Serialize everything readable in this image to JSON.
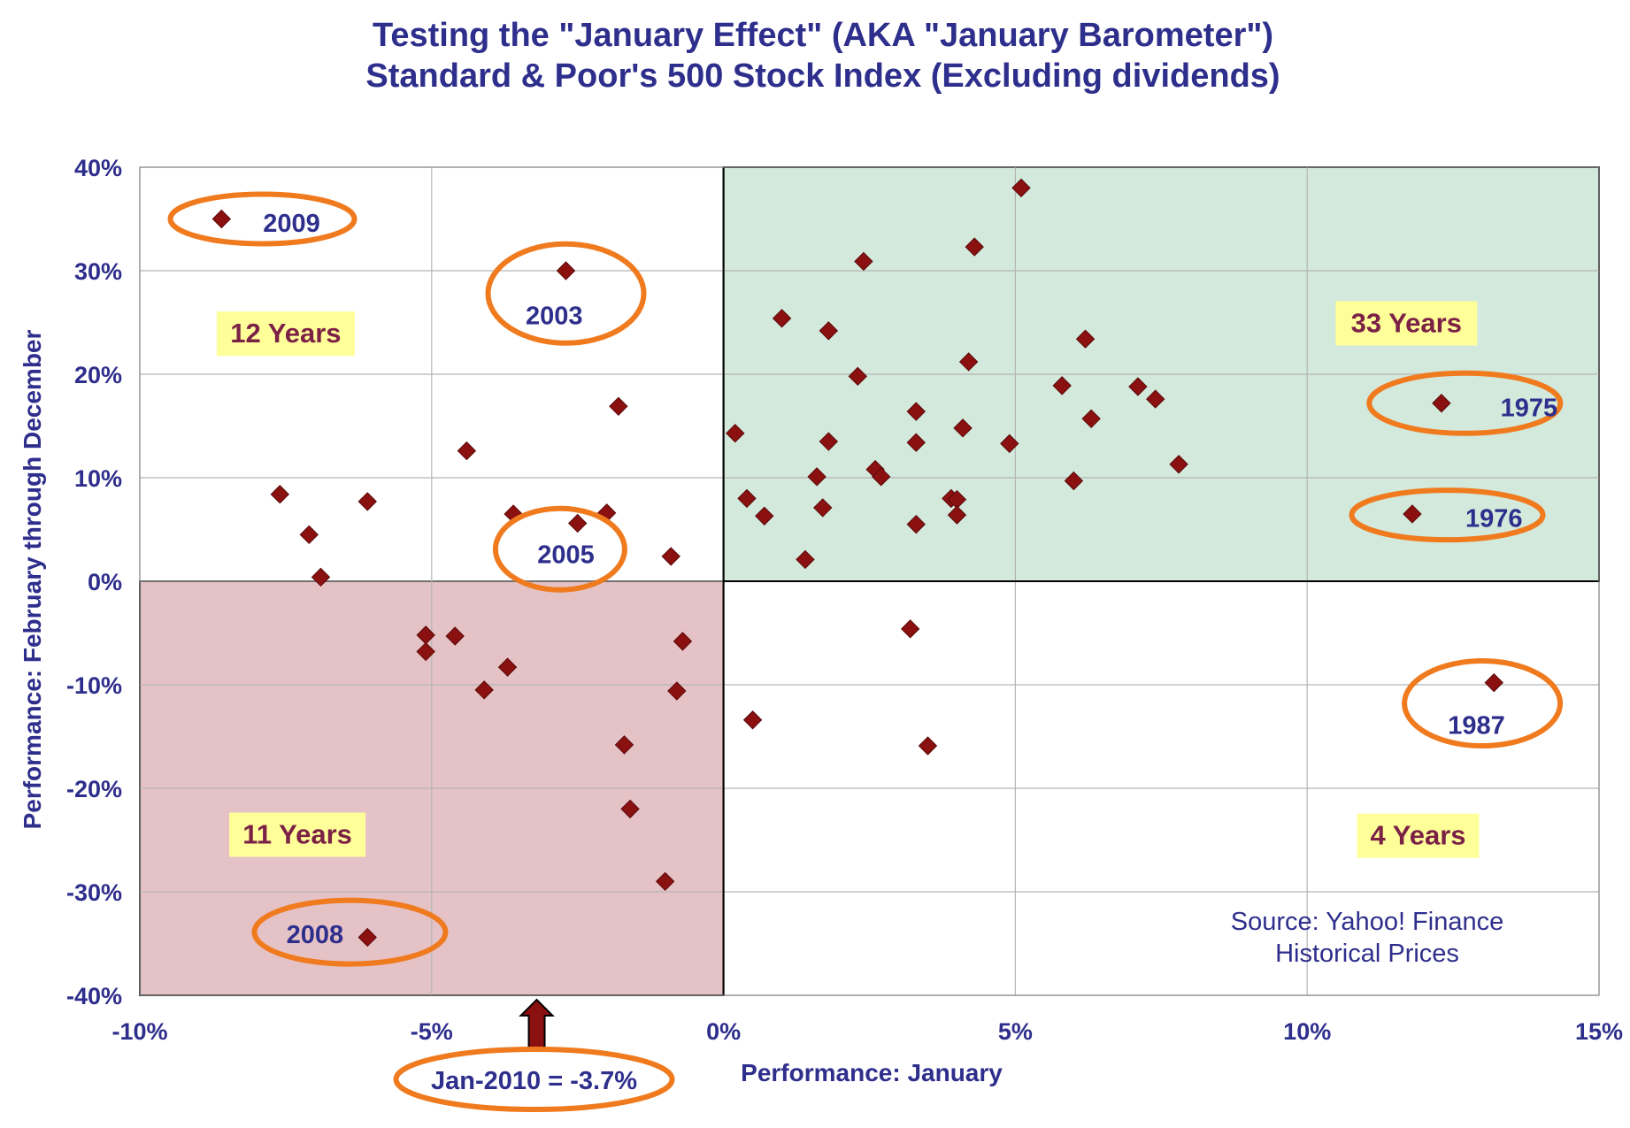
{
  "chart_data": {
    "type": "scatter",
    "title_lines": [
      "Testing the \"January Effect\" (AKA \"January Barometer\")",
      "Standard & Poor's 500 Stock Index (Excluding dividends)"
    ],
    "xlabel": "Performance: January",
    "ylabel": "Performance: February through December",
    "xlim": [
      -10,
      15
    ],
    "ylim": [
      -40,
      40
    ],
    "x_ticks": [
      -10,
      -5,
      0,
      5,
      10,
      15
    ],
    "x_tick_labels": [
      "-10%",
      "-5%",
      "0%",
      "5%",
      "10%",
      "15%"
    ],
    "y_ticks": [
      -40,
      -30,
      -20,
      -10,
      0,
      10,
      20,
      30,
      40
    ],
    "y_tick_labels": [
      "-40%",
      "-30%",
      "-20%",
      "-10%",
      "0%",
      "10%",
      "20%",
      "30%",
      "40%"
    ],
    "grid": true,
    "point_color": "#8b1010",
    "points": [
      {
        "x": -8.6,
        "y": 35.0,
        "label": "2009"
      },
      {
        "x": -2.7,
        "y": 30.0,
        "label": "2003"
      },
      {
        "x": -2.5,
        "y": 5.6,
        "label": "2005"
      },
      {
        "x": -6.1,
        "y": -34.4,
        "label": "2008"
      },
      {
        "x": 12.3,
        "y": 17.2,
        "label": "1975"
      },
      {
        "x": 11.8,
        "y": 6.5,
        "label": "1976"
      },
      {
        "x": 13.2,
        "y": -9.8,
        "label": "1987"
      },
      {
        "x": -7.6,
        "y": 8.4
      },
      {
        "x": -7.1,
        "y": 4.5
      },
      {
        "x": -6.9,
        "y": 0.4
      },
      {
        "x": -6.1,
        "y": 7.7
      },
      {
        "x": -4.4,
        "y": 12.6
      },
      {
        "x": -3.6,
        "y": 6.5
      },
      {
        "x": -2.0,
        "y": 6.6
      },
      {
        "x": -1.8,
        "y": 16.9
      },
      {
        "x": -0.9,
        "y": 2.4
      },
      {
        "x": -5.1,
        "y": -5.2
      },
      {
        "x": -5.1,
        "y": -6.8
      },
      {
        "x": -4.6,
        "y": -5.3
      },
      {
        "x": -4.1,
        "y": -10.5
      },
      {
        "x": -3.7,
        "y": -8.3
      },
      {
        "x": -0.7,
        "y": -5.8
      },
      {
        "x": -0.8,
        "y": -10.6
      },
      {
        "x": -1.7,
        "y": -15.8
      },
      {
        "x": -1.6,
        "y": -22.0
      },
      {
        "x": -1.0,
        "y": -29.0
      },
      {
        "x": 5.1,
        "y": 38.0
      },
      {
        "x": 4.3,
        "y": 32.3
      },
      {
        "x": 2.4,
        "y": 30.9
      },
      {
        "x": 1.0,
        "y": 25.4
      },
      {
        "x": 1.8,
        "y": 24.2
      },
      {
        "x": 6.2,
        "y": 23.4
      },
      {
        "x": 4.2,
        "y": 21.2
      },
      {
        "x": 2.3,
        "y": 19.8
      },
      {
        "x": 5.8,
        "y": 18.9
      },
      {
        "x": 7.1,
        "y": 18.8
      },
      {
        "x": 7.4,
        "y": 17.6
      },
      {
        "x": 3.3,
        "y": 16.4
      },
      {
        "x": 6.3,
        "y": 15.7
      },
      {
        "x": 0.2,
        "y": 14.3
      },
      {
        "x": 4.1,
        "y": 14.8
      },
      {
        "x": 1.8,
        "y": 13.5
      },
      {
        "x": 3.3,
        "y": 13.4
      },
      {
        "x": 4.9,
        "y": 13.3
      },
      {
        "x": 7.8,
        "y": 11.3
      },
      {
        "x": 2.6,
        "y": 10.8
      },
      {
        "x": 2.7,
        "y": 10.1
      },
      {
        "x": 1.6,
        "y": 10.1
      },
      {
        "x": 6.0,
        "y": 9.7
      },
      {
        "x": 3.9,
        "y": 8.0
      },
      {
        "x": 4.0,
        "y": 7.9
      },
      {
        "x": 0.4,
        "y": 8.0
      },
      {
        "x": 1.7,
        "y": 7.1
      },
      {
        "x": 0.7,
        "y": 6.3
      },
      {
        "x": 4.0,
        "y": 6.4
      },
      {
        "x": 3.3,
        "y": 5.5
      },
      {
        "x": 1.4,
        "y": 2.1
      },
      {
        "x": 3.2,
        "y": -4.6
      },
      {
        "x": 0.5,
        "y": -13.4
      },
      {
        "x": 3.5,
        "y": -15.9
      }
    ],
    "quadrants": [
      {
        "label": "12 Years",
        "x": -7.5,
        "y": 24,
        "shade": "none"
      },
      {
        "label": "33 Years",
        "x": 11.7,
        "y": 25,
        "shade": "#d3e9dc"
      },
      {
        "label": "11 Years",
        "x": -7.3,
        "y": -24.4,
        "shade": "#e5c2c6"
      },
      {
        "label": "4 Years",
        "x": 11.9,
        "y": -24.5,
        "shade": "none"
      }
    ],
    "annotations": [
      {
        "text": "Jan-2010 = -3.7%",
        "x": -3.2
      }
    ],
    "source_lines": [
      "Source: Yahoo! Finance",
      "Historical Prices"
    ]
  },
  "colors": {
    "title": "#2e2e8c",
    "marker": "#8b1010",
    "ellipse": "#f07a1e",
    "label_box": "#ffff99",
    "count_text": "#7b2146",
    "grid": "#b5b5b5",
    "green_shade": "#d3e9dc",
    "red_shade": "#e5c2c6",
    "arrow": "#8b1010"
  }
}
